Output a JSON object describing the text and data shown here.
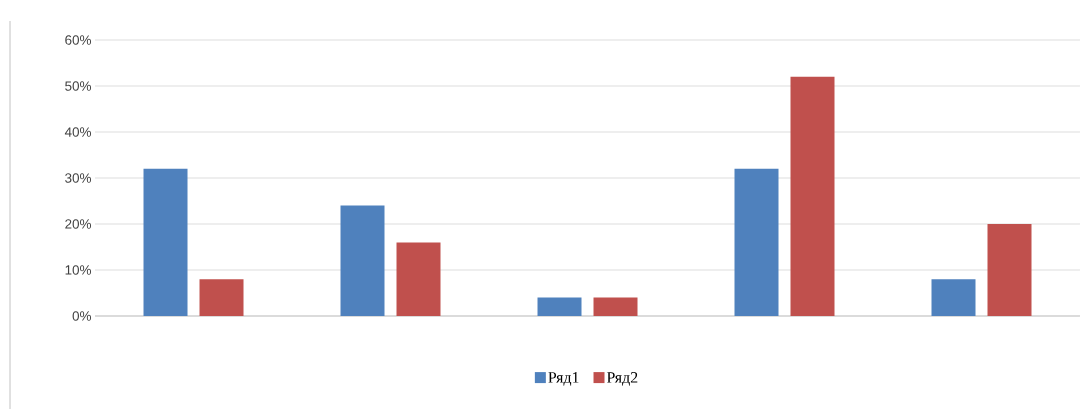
{
  "chart_data": {
    "type": "bar",
    "categories": [
      null,
      null,
      null,
      null,
      null
    ],
    "series": [
      {
        "name": "Ряд1",
        "color": "#4f81bd",
        "values": [
          32,
          24,
          4,
          32,
          8
        ]
      },
      {
        "name": "Ряд2",
        "color": "#c0504d",
        "values": [
          8,
          16,
          4,
          52,
          20
        ]
      }
    ],
    "ylim": [
      0,
      60
    ],
    "yticks": [
      {
        "value": 0,
        "label": "0%"
      },
      {
        "value": 10,
        "label": "10%"
      },
      {
        "value": 20,
        "label": "20%"
      },
      {
        "value": 30,
        "label": "30%"
      },
      {
        "value": 40,
        "label": "40%"
      },
      {
        "value": 50,
        "label": "50%"
      },
      {
        "value": 60,
        "label": "60%"
      }
    ],
    "grid": "y",
    "legend": "bottom"
  }
}
